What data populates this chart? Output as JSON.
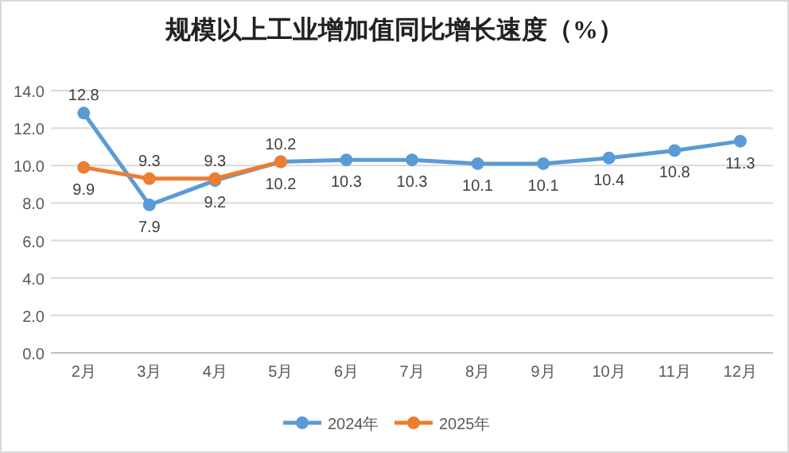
{
  "chart_data": {
    "type": "line",
    "title": "规模以上工业增加值同比增长速度（%）",
    "categories": [
      "2月",
      "3月",
      "4月",
      "5月",
      "6月",
      "7月",
      "8月",
      "9月",
      "10月",
      "11月",
      "12月"
    ],
    "series": [
      {
        "name": "2024年",
        "color": "#5b9bd5",
        "values": [
          12.8,
          7.9,
          9.2,
          10.2,
          10.3,
          10.3,
          10.1,
          10.1,
          10.4,
          10.8,
          11.3
        ]
      },
      {
        "name": "2025年",
        "color": "#ed7d31",
        "values": [
          9.9,
          9.3,
          9.3,
          10.2,
          null,
          null,
          null,
          null,
          null,
          null,
          null
        ]
      }
    ],
    "ylim": [
      0,
      14
    ],
    "yticks": [
      {
        "value": 0,
        "label": "0.0"
      },
      {
        "value": 2,
        "label": "2.0"
      },
      {
        "value": 4,
        "label": "4.0"
      },
      {
        "value": 6,
        "label": "6.0"
      },
      {
        "value": 8,
        "label": "8.0"
      },
      {
        "value": 10,
        "label": "10.0"
      },
      {
        "value": 12,
        "label": "12.0"
      },
      {
        "value": 14,
        "label": "14.0"
      }
    ],
    "grid": "y",
    "legend": "bottom",
    "marker": "circle",
    "line_style": "solid",
    "data_labels": true
  }
}
